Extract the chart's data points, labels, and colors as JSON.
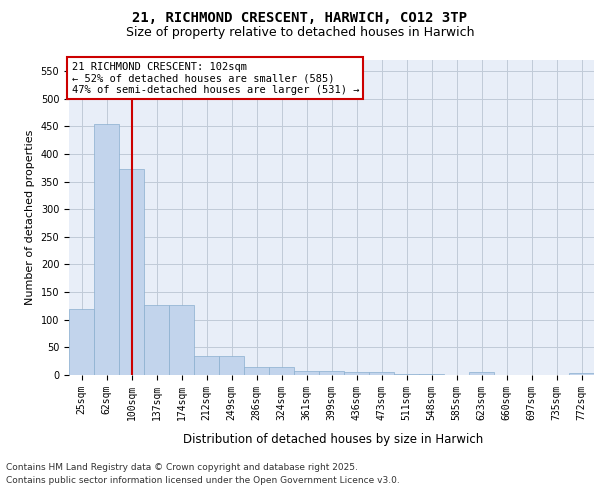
{
  "title_line1": "21, RICHMOND CRESCENT, HARWICH, CO12 3TP",
  "title_line2": "Size of property relative to detached houses in Harwich",
  "xlabel": "Distribution of detached houses by size in Harwich",
  "ylabel": "Number of detached properties",
  "categories": [
    "25sqm",
    "62sqm",
    "100sqm",
    "137sqm",
    "174sqm",
    "212sqm",
    "249sqm",
    "286sqm",
    "324sqm",
    "361sqm",
    "399sqm",
    "436sqm",
    "473sqm",
    "511sqm",
    "548sqm",
    "585sqm",
    "623sqm",
    "660sqm",
    "697sqm",
    "735sqm",
    "772sqm"
  ],
  "values": [
    120,
    455,
    372,
    127,
    127,
    35,
    35,
    15,
    15,
    8,
    8,
    5,
    5,
    1,
    1,
    0,
    5,
    0,
    0,
    0,
    3
  ],
  "bar_color": "#c2d4ec",
  "bar_edge_color": "#8aafcf",
  "vline_index": 2,
  "vline_color": "#cc0000",
  "annotation_line1": "21 RICHMOND CRESCENT: 102sqm",
  "annotation_line2": "← 52% of detached houses are smaller (585)",
  "annotation_line3": "47% of semi-detached houses are larger (531) →",
  "ylim_max": 570,
  "yticks": [
    0,
    50,
    100,
    150,
    200,
    250,
    300,
    350,
    400,
    450,
    500,
    550
  ],
  "background_color": "#e8eef8",
  "grid_color": "#c0cad8",
  "title_fontsize": 10,
  "subtitle_fontsize": 9,
  "ylabel_fontsize": 8,
  "xlabel_fontsize": 8.5,
  "tick_fontsize": 7,
  "annotation_fontsize": 7.5,
  "footer_fontsize": 6.5,
  "footer_line1": "Contains HM Land Registry data © Crown copyright and database right 2025.",
  "footer_line2": "Contains public sector information licensed under the Open Government Licence v3.0."
}
